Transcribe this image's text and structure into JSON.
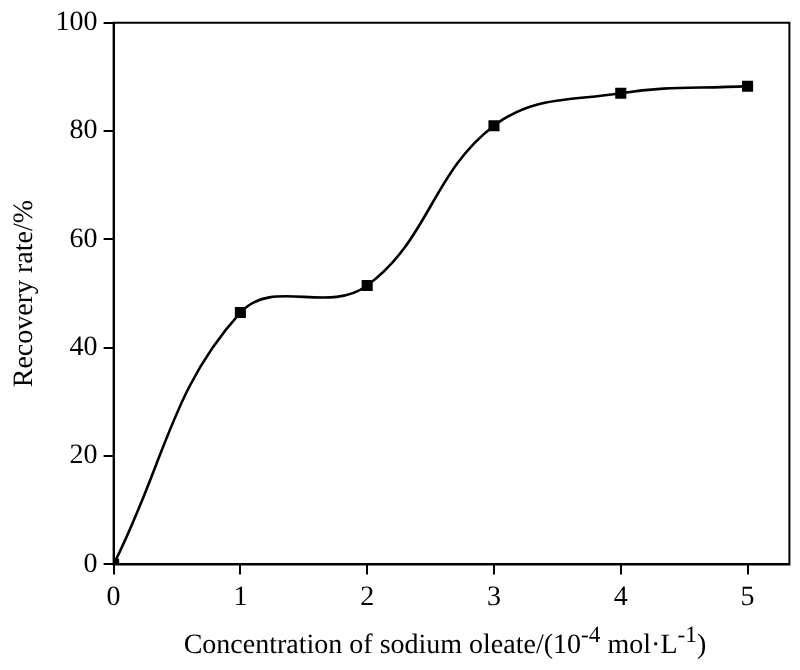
{
  "chart_data": {
    "type": "line",
    "xlabel": "Concentration of sodium oleate/(10$^{-4}$ mol·L$^{-1}$)",
    "ylabel": "Recovery rate/%",
    "x": [
      0,
      1,
      2,
      3,
      4,
      5
    ],
    "series": [
      {
        "color": "#000000",
        "values": [
          0,
          46.5,
          51.5,
          81,
          87,
          88.3
        ]
      }
    ],
    "xlim": [
      0,
      5.33
    ],
    "xticks": [
      0,
      1,
      2,
      3,
      4,
      5
    ],
    "ylim": [
      0,
      100
    ],
    "yticks": [
      0,
      20,
      40,
      60,
      80,
      100
    ],
    "marker": "square",
    "line_style": "solid",
    "grid": false,
    "legend": false
  }
}
